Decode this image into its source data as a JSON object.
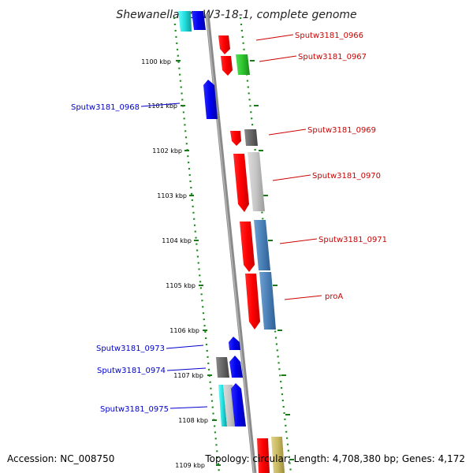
{
  "title": "Shewanella sp. W3-18-1, complete genome",
  "accession": "Accession: NC_008750",
  "topology": "Topology: circular; Length: 4,708,380 bp; Genes: 4,172",
  "colors": {
    "forward_label": "#cc0000",
    "reverse_label": "#0000cc",
    "backbone": "#8a8a8a",
    "ruler_dots": "#1a8a1a"
  },
  "ruler_ticks": [
    "1100 kbp",
    "1101 kbp",
    "1102 kbp",
    "1103 kbp",
    "1104 kbp",
    "1105 kbp",
    "1106 kbp",
    "1107 kbp",
    "1108 kbp",
    "1109 kbp"
  ],
  "gene_labels": [
    {
      "name": "Sputw3181_0966",
      "strand": "forward"
    },
    {
      "name": "Sputw3181_0967",
      "strand": "forward"
    },
    {
      "name": "Sputw3181_0968",
      "strand": "reverse"
    },
    {
      "name": "Sputw3181_0969",
      "strand": "forward"
    },
    {
      "name": "Sputw3181_0970",
      "strand": "forward"
    },
    {
      "name": "Sputw3181_0971",
      "strand": "forward"
    },
    {
      "name": "proA",
      "strand": "forward"
    },
    {
      "name": "Sputw3181_0973",
      "strand": "reverse"
    },
    {
      "name": "Sputw3181_0974",
      "strand": "reverse"
    },
    {
      "name": "Sputw3181_0975",
      "strand": "reverse"
    }
  ]
}
